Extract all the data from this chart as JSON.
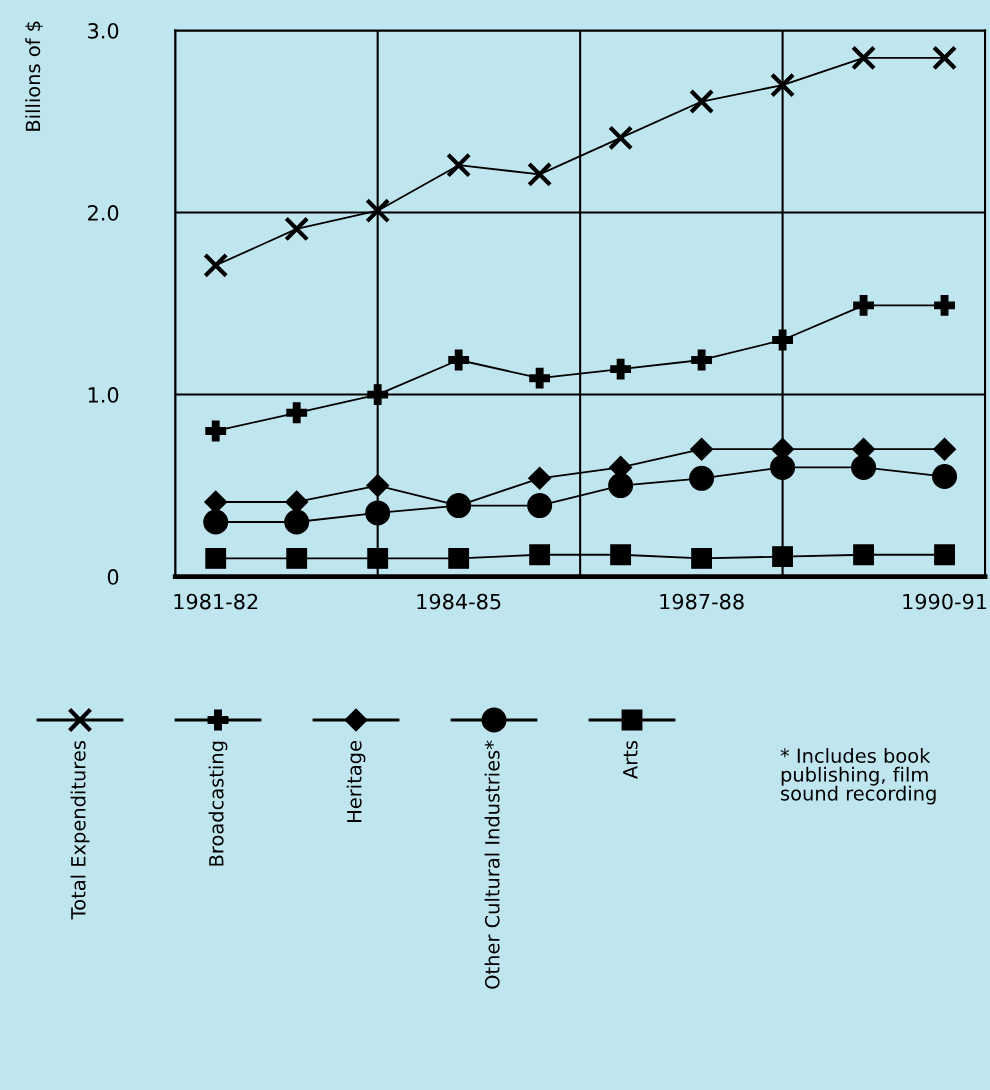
{
  "chart_data": {
    "type": "line",
    "ylabel": "Billions of $",
    "categories": [
      "1981-82",
      null,
      null,
      "1984-85",
      null,
      null,
      "1987-88",
      null,
      null,
      "1990-91"
    ],
    "series": [
      {
        "name": "Total Expenditures",
        "color": "#000000",
        "marker": "cross",
        "values": [
          1.71,
          1.91,
          2.01,
          2.26,
          2.21,
          2.41,
          2.61,
          2.7,
          2.85,
          2.85
        ]
      },
      {
        "name": "Broadcasting",
        "color": "#000000",
        "marker": "plus",
        "values": [
          0.8,
          0.9,
          1.0,
          1.19,
          1.09,
          1.14,
          1.19,
          1.3,
          1.49,
          1.49
        ]
      },
      {
        "name": "Heritage",
        "color": "#000000",
        "marker": "diamond",
        "values": [
          0.41,
          0.41,
          0.5,
          0.39,
          0.54,
          0.6,
          0.7,
          0.7,
          0.7,
          0.7
        ]
      },
      {
        "name": "Other Cultural Industries*",
        "color": "#000000",
        "marker": "circle",
        "values": [
          0.3,
          0.3,
          0.35,
          0.39,
          0.39,
          0.5,
          0.54,
          0.6,
          0.6,
          0.55
        ]
      },
      {
        "name": "Arts",
        "color": "#000000",
        "marker": "square",
        "values": [
          0.1,
          0.1,
          0.1,
          0.1,
          0.12,
          0.12,
          0.1,
          0.11,
          0.12,
          0.12
        ]
      }
    ],
    "ylim": [
      0,
      3.0
    ],
    "yticks": [
      {
        "value": 0,
        "label": "0"
      },
      {
        "value": 1.0,
        "label": "1.0"
      },
      {
        "value": 2.0,
        "label": "2.0"
      },
      {
        "value": 3.0,
        "label": "3.0"
      }
    ],
    "grid": true,
    "legend": "bottom",
    "line_style": "solid",
    "annotations": [
      "* Includes book\npublishing, film\nsound recording"
    ]
  }
}
